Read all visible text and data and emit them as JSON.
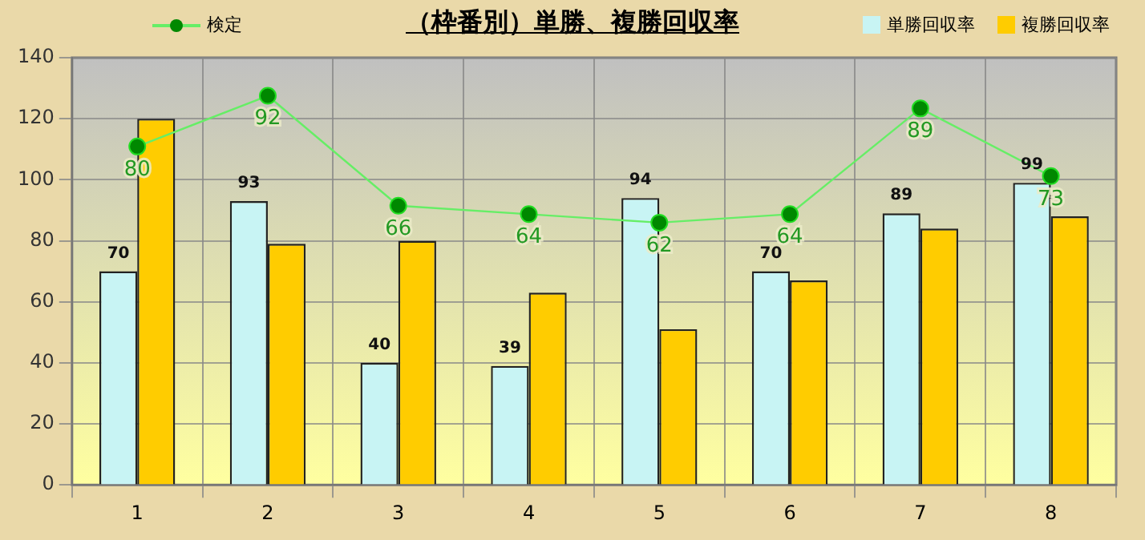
{
  "chart_data": {
    "type": "bar",
    "title": "（枠番別）単勝、複勝回収率",
    "categories": [
      "1",
      "2",
      "3",
      "4",
      "5",
      "6",
      "7",
      "8"
    ],
    "series": [
      {
        "name": "単勝回収率",
        "color": "#c8f4f4",
        "values": [
          70,
          93,
          40,
          39,
          94,
          70,
          89,
          99
        ],
        "value_labels": [
          "70",
          "93",
          "40",
          "39",
          "94",
          "70",
          "89",
          "99"
        ]
      },
      {
        "name": "複勝回収率",
        "color": "#ffcc00",
        "values": [
          120,
          79,
          80,
          63,
          51,
          67,
          84,
          88
        ]
      },
      {
        "name": "検定",
        "type": "line",
        "axis": "y2",
        "color": "#66ee66",
        "marker": "circle",
        "values": [
          80,
          92,
          66,
          64,
          62,
          64,
          89,
          73
        ],
        "value_labels": [
          "80",
          "92",
          "66",
          "64",
          "62",
          "64",
          "89",
          "73"
        ]
      }
    ],
    "ylim": [
      0,
      140
    ],
    "yticks": [
      0,
      20,
      40,
      60,
      80,
      100,
      120,
      140
    ],
    "y2lim": [
      0,
      101
    ],
    "grid": true,
    "legend": "top"
  }
}
